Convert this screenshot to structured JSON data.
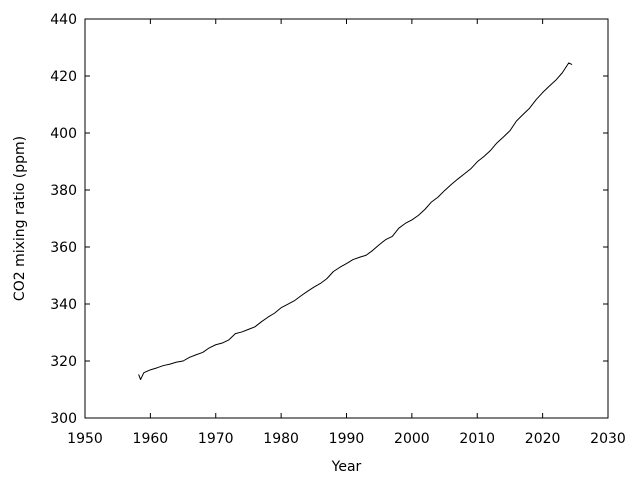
{
  "chart_data": {
    "type": "line",
    "title": "",
    "xlabel": "Year",
    "ylabel": "CO2 mixing ratio (ppm)",
    "xlim": [
      1950,
      2030
    ],
    "ylim": [
      300,
      440
    ],
    "x_ticks": [
      1950,
      1960,
      1970,
      1980,
      1990,
      2000,
      2010,
      2020,
      2030
    ],
    "y_ticks": [
      300,
      320,
      340,
      360,
      380,
      400,
      420,
      440
    ],
    "x_tick_labels": [
      "1950",
      "1960",
      "1970",
      "1980",
      "1990",
      "2000",
      "2010",
      "2020",
      "2030"
    ],
    "y_tick_labels": [
      "300",
      "320",
      "340",
      "360",
      "380",
      "400",
      "420",
      "440"
    ],
    "grid": false,
    "legend": "none",
    "line_color": "#000000",
    "series": [
      {
        "x": [
          1958.2,
          1958.5,
          1959.0,
          1960.0,
          1961.0,
          1962.0,
          1963.0,
          1964.0,
          1965.0,
          1966.0,
          1967.0,
          1968.0,
          1969.0,
          1970.0,
          1971.0,
          1972.0,
          1973.0,
          1974.0,
          1975.0,
          1976.0,
          1977.0,
          1978.0,
          1979.0,
          1980.0,
          1981.0,
          1982.0,
          1983.0,
          1984.0,
          1985.0,
          1986.0,
          1987.0,
          1988.0,
          1989.0,
          1990.0,
          1991.0,
          1992.0,
          1993.0,
          1994.0,
          1995.0,
          1996.0,
          1997.0,
          1998.0,
          1999.0,
          2000.0,
          2001.0,
          2002.0,
          2003.0,
          2004.0,
          2005.0,
          2006.0,
          2007.0,
          2008.0,
          2009.0,
          2010.0,
          2011.0,
          2012.0,
          2013.0,
          2014.0,
          2015.0,
          2016.0,
          2017.0,
          2018.0,
          2019.0,
          2020.0,
          2021.0,
          2022.0,
          2023.0,
          2024.0,
          2024.5
        ],
        "y": [
          315.3,
          313.5,
          315.9,
          316.9,
          317.6,
          318.4,
          318.9,
          319.6,
          320.0,
          321.3,
          322.2,
          323.0,
          324.6,
          325.7,
          326.3,
          327.4,
          329.6,
          330.2,
          331.1,
          332.0,
          333.8,
          335.4,
          336.8,
          338.7,
          339.9,
          341.1,
          342.8,
          344.4,
          345.9,
          347.2,
          348.9,
          351.4,
          352.9,
          354.2,
          355.6,
          356.4,
          357.1,
          358.8,
          360.8,
          362.6,
          363.7,
          366.6,
          368.3,
          369.5,
          371.1,
          373.2,
          375.8,
          377.5,
          379.8,
          381.9,
          383.8,
          385.6,
          387.4,
          389.9,
          391.7,
          393.8,
          396.5,
          398.6,
          400.8,
          404.2,
          406.5,
          408.7,
          411.7,
          414.2,
          416.4,
          418.5,
          421.1,
          424.6,
          424.0
        ]
      }
    ]
  }
}
